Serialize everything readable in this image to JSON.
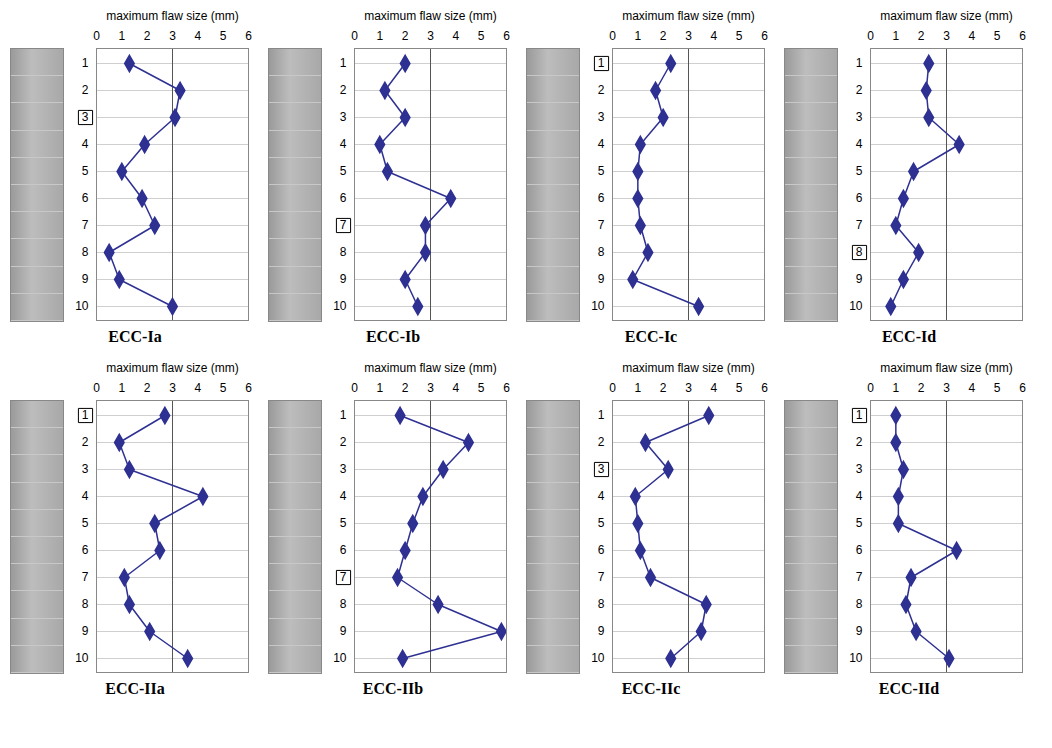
{
  "chart_data": [
    {
      "type": "line",
      "title": "ECC-Ia",
      "x_label": "maximum flaw size (mm)",
      "orientation": "horizontal",
      "categories": [
        1,
        2,
        3,
        4,
        5,
        6,
        7,
        8,
        9,
        10
      ],
      "values": [
        1.3,
        3.3,
        3.1,
        1.9,
        1.0,
        1.8,
        2.3,
        0.5,
        0.9,
        3.0
      ],
      "xlim": [
        0,
        6
      ],
      "xticks": [
        0,
        1,
        2,
        3,
        4,
        5,
        6
      ],
      "color": "#2e3192",
      "marker": "diamond",
      "grid": true,
      "reference_x": 3,
      "highlighted_category": 3
    },
    {
      "type": "line",
      "title": "ECC-Ib",
      "x_label": "maximum flaw size (mm)",
      "orientation": "horizontal",
      "categories": [
        1,
        2,
        3,
        4,
        5,
        6,
        7,
        8,
        9,
        10
      ],
      "values": [
        2.0,
        1.2,
        2.0,
        1.0,
        1.3,
        3.8,
        2.8,
        2.8,
        2.0,
        2.5
      ],
      "xlim": [
        0,
        6
      ],
      "xticks": [
        0,
        1,
        2,
        3,
        4,
        5,
        6
      ],
      "color": "#2e3192",
      "marker": "diamond",
      "grid": true,
      "reference_x": 3,
      "highlighted_category": 7
    },
    {
      "type": "line",
      "title": "ECC-Ic",
      "x_label": "maximum flaw size (mm)",
      "orientation": "horizontal",
      "categories": [
        1,
        2,
        3,
        4,
        5,
        6,
        7,
        8,
        9,
        10
      ],
      "values": [
        2.3,
        1.7,
        2.0,
        1.1,
        1.0,
        1.0,
        1.1,
        1.4,
        0.8,
        3.4
      ],
      "xlim": [
        0,
        6
      ],
      "xticks": [
        0,
        1,
        2,
        3,
        4,
        5,
        6
      ],
      "color": "#2e3192",
      "marker": "diamond",
      "grid": true,
      "reference_x": 3,
      "highlighted_category": 1
    },
    {
      "type": "line",
      "title": "ECC-Id",
      "x_label": "maximum flaw size (mm)",
      "orientation": "horizontal",
      "categories": [
        1,
        2,
        3,
        4,
        5,
        6,
        7,
        8,
        9,
        10
      ],
      "values": [
        2.3,
        2.2,
        2.3,
        3.5,
        1.7,
        1.3,
        1.0,
        1.9,
        1.3,
        0.8
      ],
      "xlim": [
        0,
        6
      ],
      "xticks": [
        0,
        1,
        2,
        3,
        4,
        5,
        6
      ],
      "color": "#2e3192",
      "marker": "diamond",
      "grid": true,
      "reference_x": 3,
      "highlighted_category": 8
    },
    {
      "type": "line",
      "title": "ECC-IIa",
      "x_label": "maximum flaw size (mm)",
      "orientation": "horizontal",
      "categories": [
        1,
        2,
        3,
        4,
        5,
        6,
        7,
        8,
        9,
        10
      ],
      "values": [
        2.7,
        0.9,
        1.3,
        4.2,
        2.3,
        2.5,
        1.1,
        1.3,
        2.1,
        3.6
      ],
      "xlim": [
        0,
        6
      ],
      "xticks": [
        0,
        1,
        2,
        3,
        4,
        5,
        6
      ],
      "color": "#2e3192",
      "marker": "diamond",
      "grid": true,
      "reference_x": 3,
      "highlighted_category": 1
    },
    {
      "type": "line",
      "title": "ECC-IIb",
      "x_label": "maximum flaw size (mm)",
      "orientation": "horizontal",
      "categories": [
        1,
        2,
        3,
        4,
        5,
        6,
        7,
        8,
        9,
        10
      ],
      "values": [
        1.8,
        4.5,
        3.5,
        2.7,
        2.3,
        2.0,
        1.7,
        3.3,
        5.8,
        1.9
      ],
      "xlim": [
        0,
        6
      ],
      "xticks": [
        0,
        1,
        2,
        3,
        4,
        5,
        6
      ],
      "color": "#2e3192",
      "marker": "diamond",
      "grid": true,
      "reference_x": 3,
      "highlighted_category": 7
    },
    {
      "type": "line",
      "title": "ECC-IIc",
      "x_label": "maximum flaw size (mm)",
      "orientation": "horizontal",
      "categories": [
        1,
        2,
        3,
        4,
        5,
        6,
        7,
        8,
        9,
        10
      ],
      "values": [
        3.8,
        1.3,
        2.2,
        0.9,
        1.0,
        1.1,
        1.5,
        3.7,
        3.5,
        2.3
      ],
      "xlim": [
        0,
        6
      ],
      "xticks": [
        0,
        1,
        2,
        3,
        4,
        5,
        6
      ],
      "color": "#2e3192",
      "marker": "diamond",
      "grid": true,
      "reference_x": 3,
      "highlighted_category": 3
    },
    {
      "type": "line",
      "title": "ECC-IId",
      "x_label": "maximum flaw size (mm)",
      "orientation": "horizontal",
      "categories": [
        1,
        2,
        3,
        4,
        5,
        6,
        7,
        8,
        9,
        10
      ],
      "values": [
        1.0,
        1.0,
        1.3,
        1.1,
        1.1,
        3.4,
        1.6,
        1.4,
        1.8,
        3.1
      ],
      "xlim": [
        0,
        6
      ],
      "xticks": [
        0,
        1,
        2,
        3,
        4,
        5,
        6
      ],
      "color": "#2e3192",
      "marker": "diamond",
      "grid": true,
      "reference_x": 3,
      "highlighted_category": 1
    }
  ]
}
